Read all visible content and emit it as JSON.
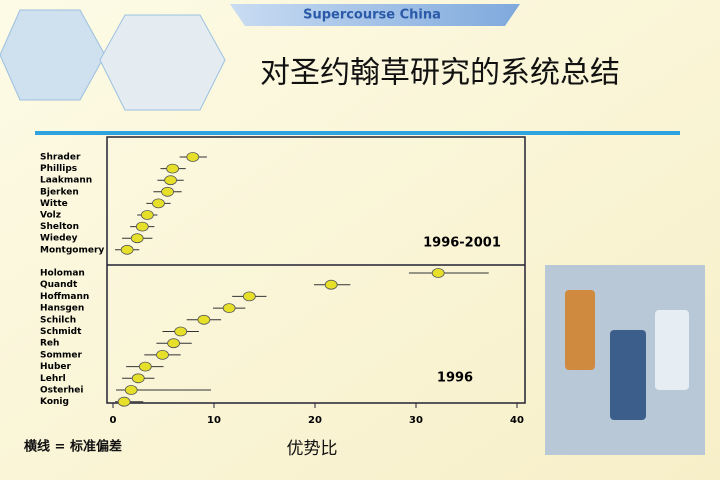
{
  "header": "Supercourse China",
  "title": "对圣约翰草研究的系统总结",
  "footnote": "横线 = 标准偏差",
  "chart_data": {
    "type": "forest",
    "x_label": "优势比",
    "xlim": [
      0,
      40
    ],
    "xticks": [
      0,
      10,
      20,
      30,
      40
    ],
    "point_color": "#e6e02a",
    "groups": [
      {
        "label": "1996-2001",
        "categories": [
          "Shrader",
          "Phillips",
          "Laakmann",
          "Bjerken",
          "Witte",
          "Volz",
          "Shelton",
          "Wiedey",
          "Montgomery"
        ],
        "values": [
          7.9,
          5.9,
          5.7,
          5.4,
          4.5,
          3.4,
          2.9,
          2.4,
          1.4
        ],
        "lower": [
          6.6,
          4.7,
          4.4,
          4.0,
          3.3,
          2.4,
          1.7,
          0.9,
          0.2
        ],
        "upper": [
          9.3,
          7.2,
          7.0,
          6.8,
          5.7,
          4.4,
          4.1,
          3.9,
          2.6
        ]
      },
      {
        "label": "1996",
        "categories": [
          "Holoman",
          "Quandt",
          "Hoffmann",
          "Hansgen",
          "Schilch",
          "Schmidt",
          "Reh",
          "Sommer",
          "Huber",
          "Lehrl",
          "Osterhei",
          "Konig"
        ],
        "values": [
          32.2,
          21.6,
          13.5,
          11.5,
          9.0,
          6.7,
          6.0,
          4.9,
          3.2,
          2.5,
          1.8,
          1.1
        ],
        "lower": [
          29.3,
          19.9,
          11.8,
          9.9,
          7.3,
          4.9,
          4.3,
          3.1,
          1.3,
          0.9,
          0.3,
          0.2
        ],
        "upper": [
          37.2,
          23.5,
          15.2,
          13.1,
          10.7,
          8.5,
          7.8,
          6.7,
          5.0,
          4.1,
          9.7,
          3.0
        ]
      }
    ]
  }
}
